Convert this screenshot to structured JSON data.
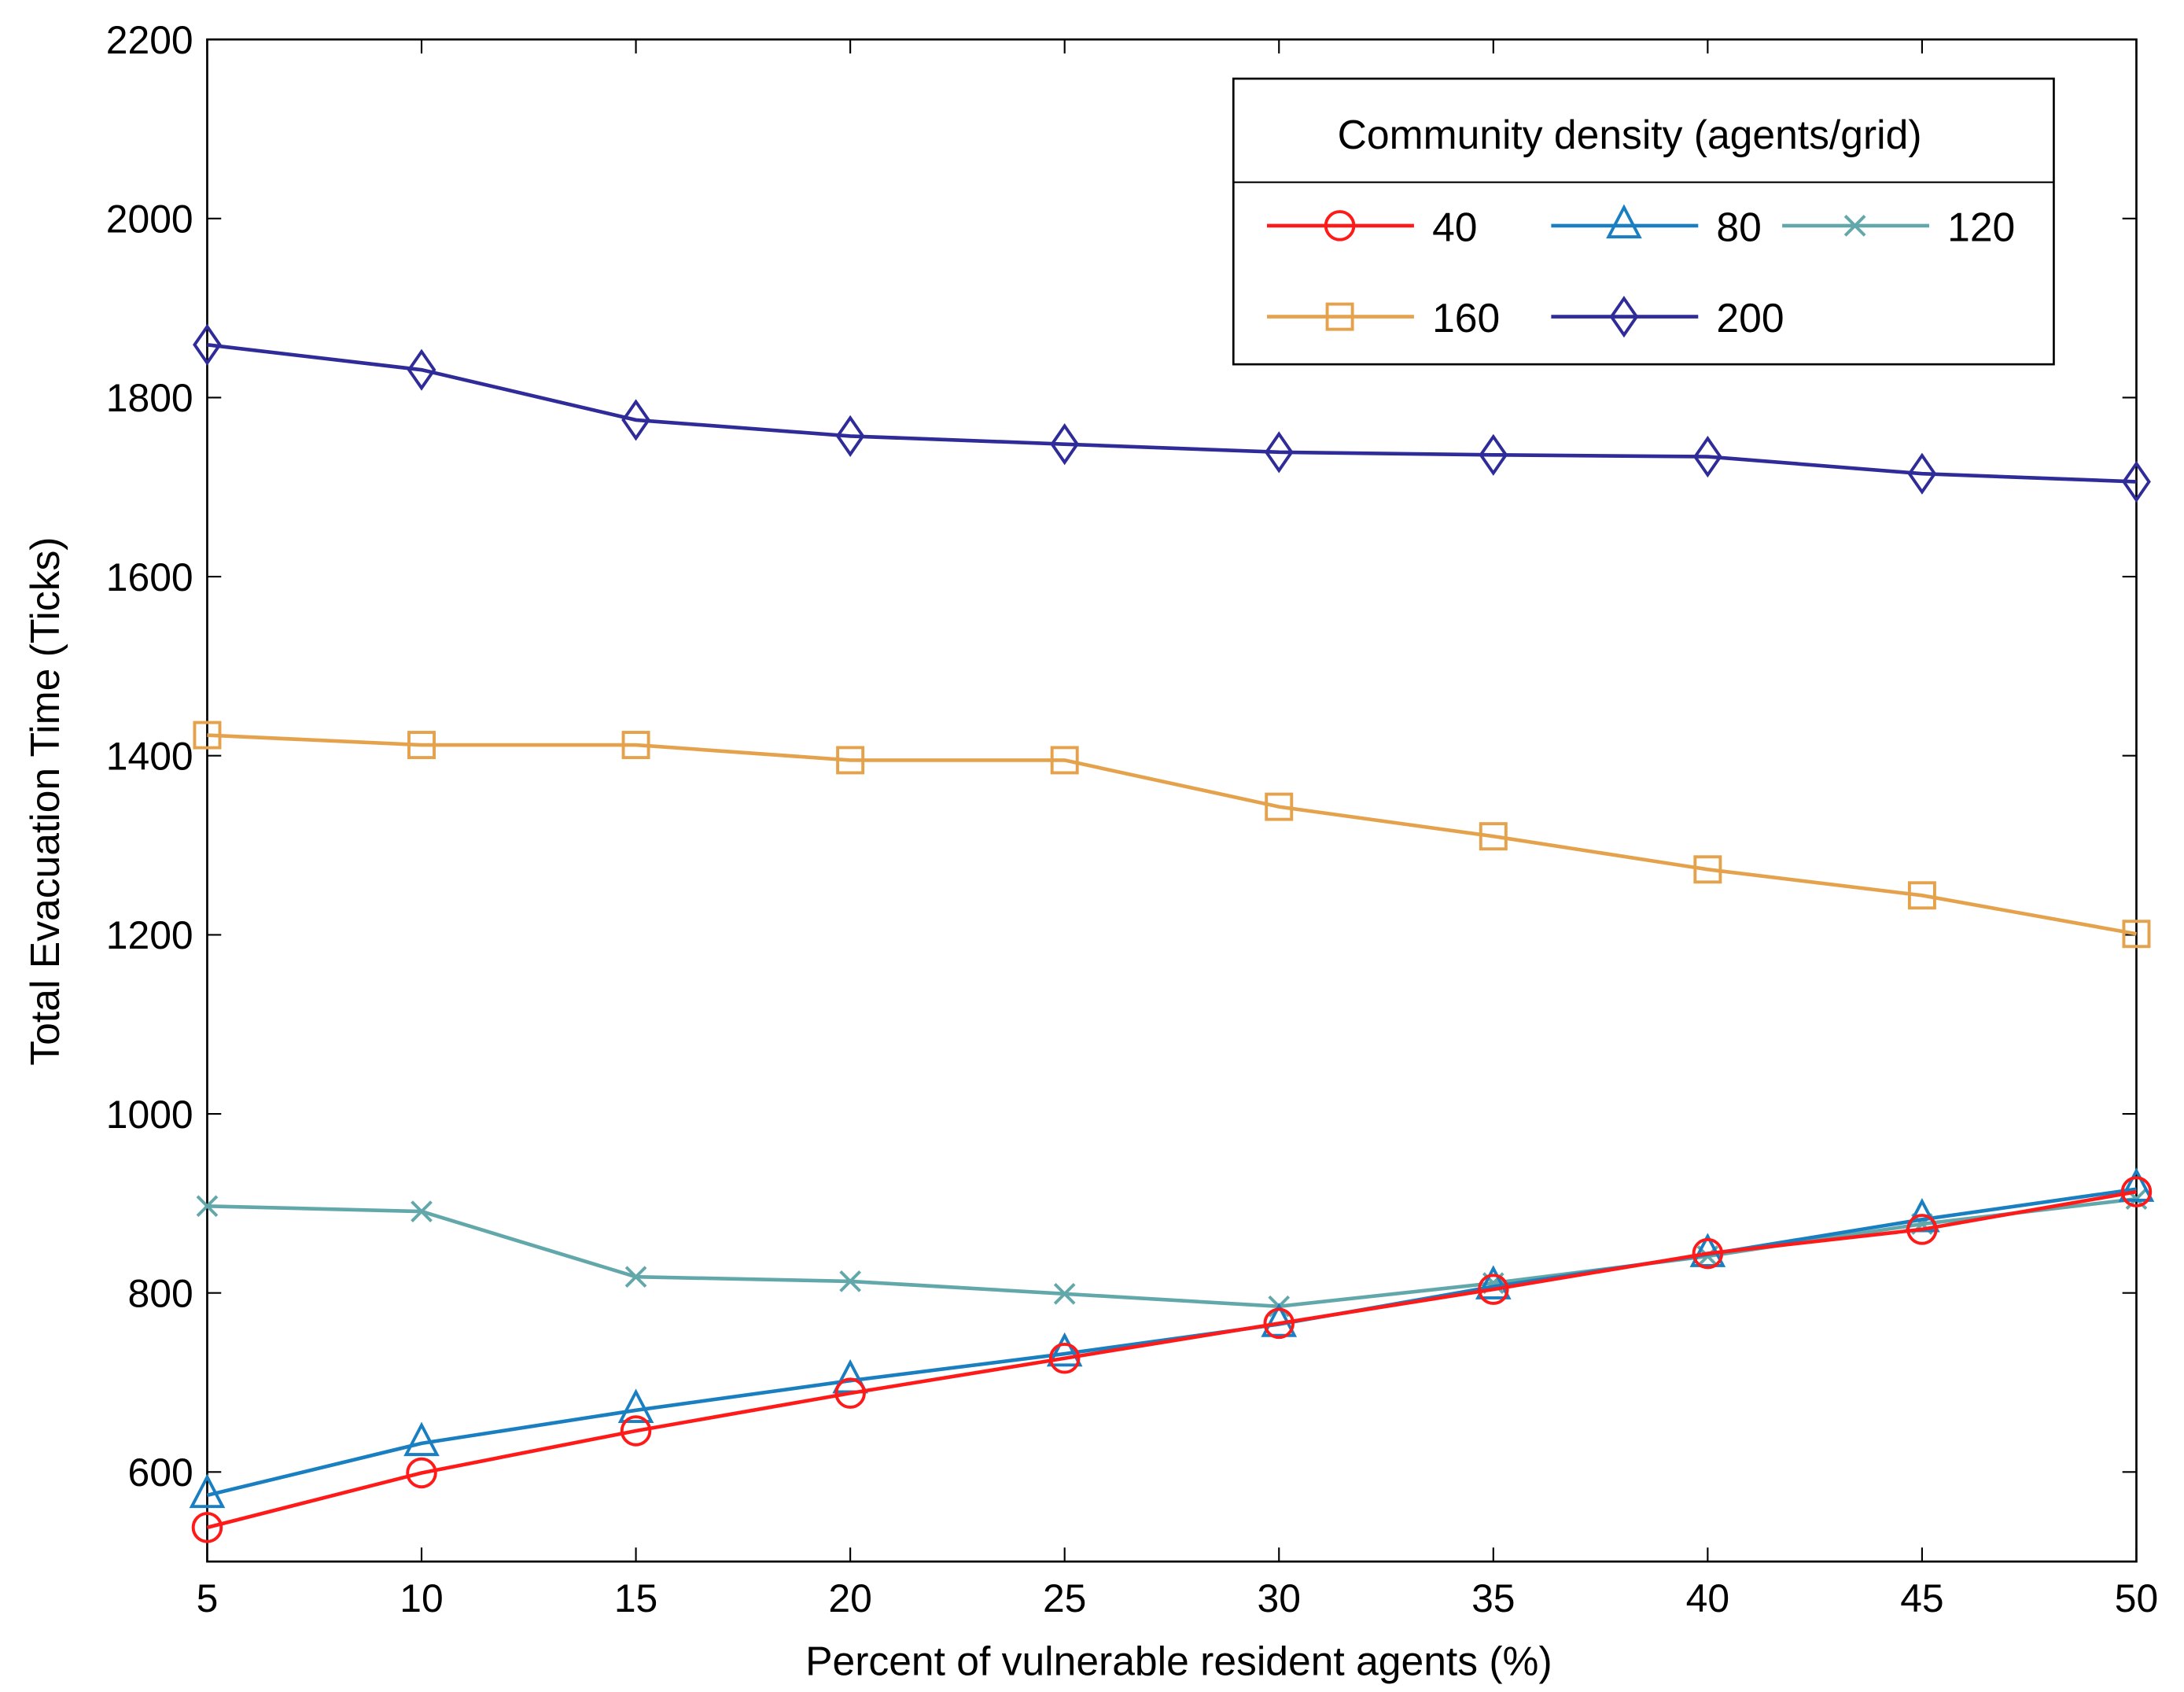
{
  "chart_data": {
    "type": "line",
    "title": "",
    "xlabel": "Percent of vulnerable resident agents (%)",
    "ylabel": "Total Evacuation Time (Ticks)",
    "xlim": [
      5,
      50
    ],
    "ylim": [
      500,
      2200
    ],
    "xticks": [
      5,
      10,
      15,
      20,
      25,
      30,
      35,
      40,
      45,
      50
    ],
    "yticks": [
      600,
      800,
      1000,
      1200,
      1400,
      1600,
      1800,
      2000,
      2200
    ],
    "grid": false,
    "legend": {
      "title": "Community density (agents/grid)",
      "placement": "top-right"
    },
    "x": [
      5,
      10,
      15,
      20,
      25,
      30,
      35,
      40,
      45,
      50
    ],
    "series": [
      {
        "name": "40",
        "color": "#ff1a1a",
        "marker": "circle",
        "values": [
          538,
          599,
          646,
          688,
          727,
          766,
          804,
          844,
          871,
          913
        ]
      },
      {
        "name": "80",
        "color": "#1a7fc1",
        "marker": "triangle",
        "values": [
          574,
          632,
          669,
          702,
          732,
          765,
          807,
          843,
          882,
          916
        ]
      },
      {
        "name": "120",
        "color": "#62a8ab",
        "marker": "x",
        "values": [
          897,
          891,
          818,
          813,
          799,
          785,
          811,
          841,
          877,
          905
        ]
      },
      {
        "name": "160",
        "color": "#e5a24c",
        "marker": "square",
        "values": [
          1423,
          1412,
          1412,
          1395,
          1395,
          1343,
          1310,
          1273,
          1244,
          1201
        ]
      },
      {
        "name": "200",
        "color": "#2f2b98",
        "marker": "diamond",
        "values": [
          1859,
          1831,
          1775,
          1757,
          1748,
          1739,
          1736,
          1734,
          1715,
          1706
        ]
      }
    ]
  }
}
